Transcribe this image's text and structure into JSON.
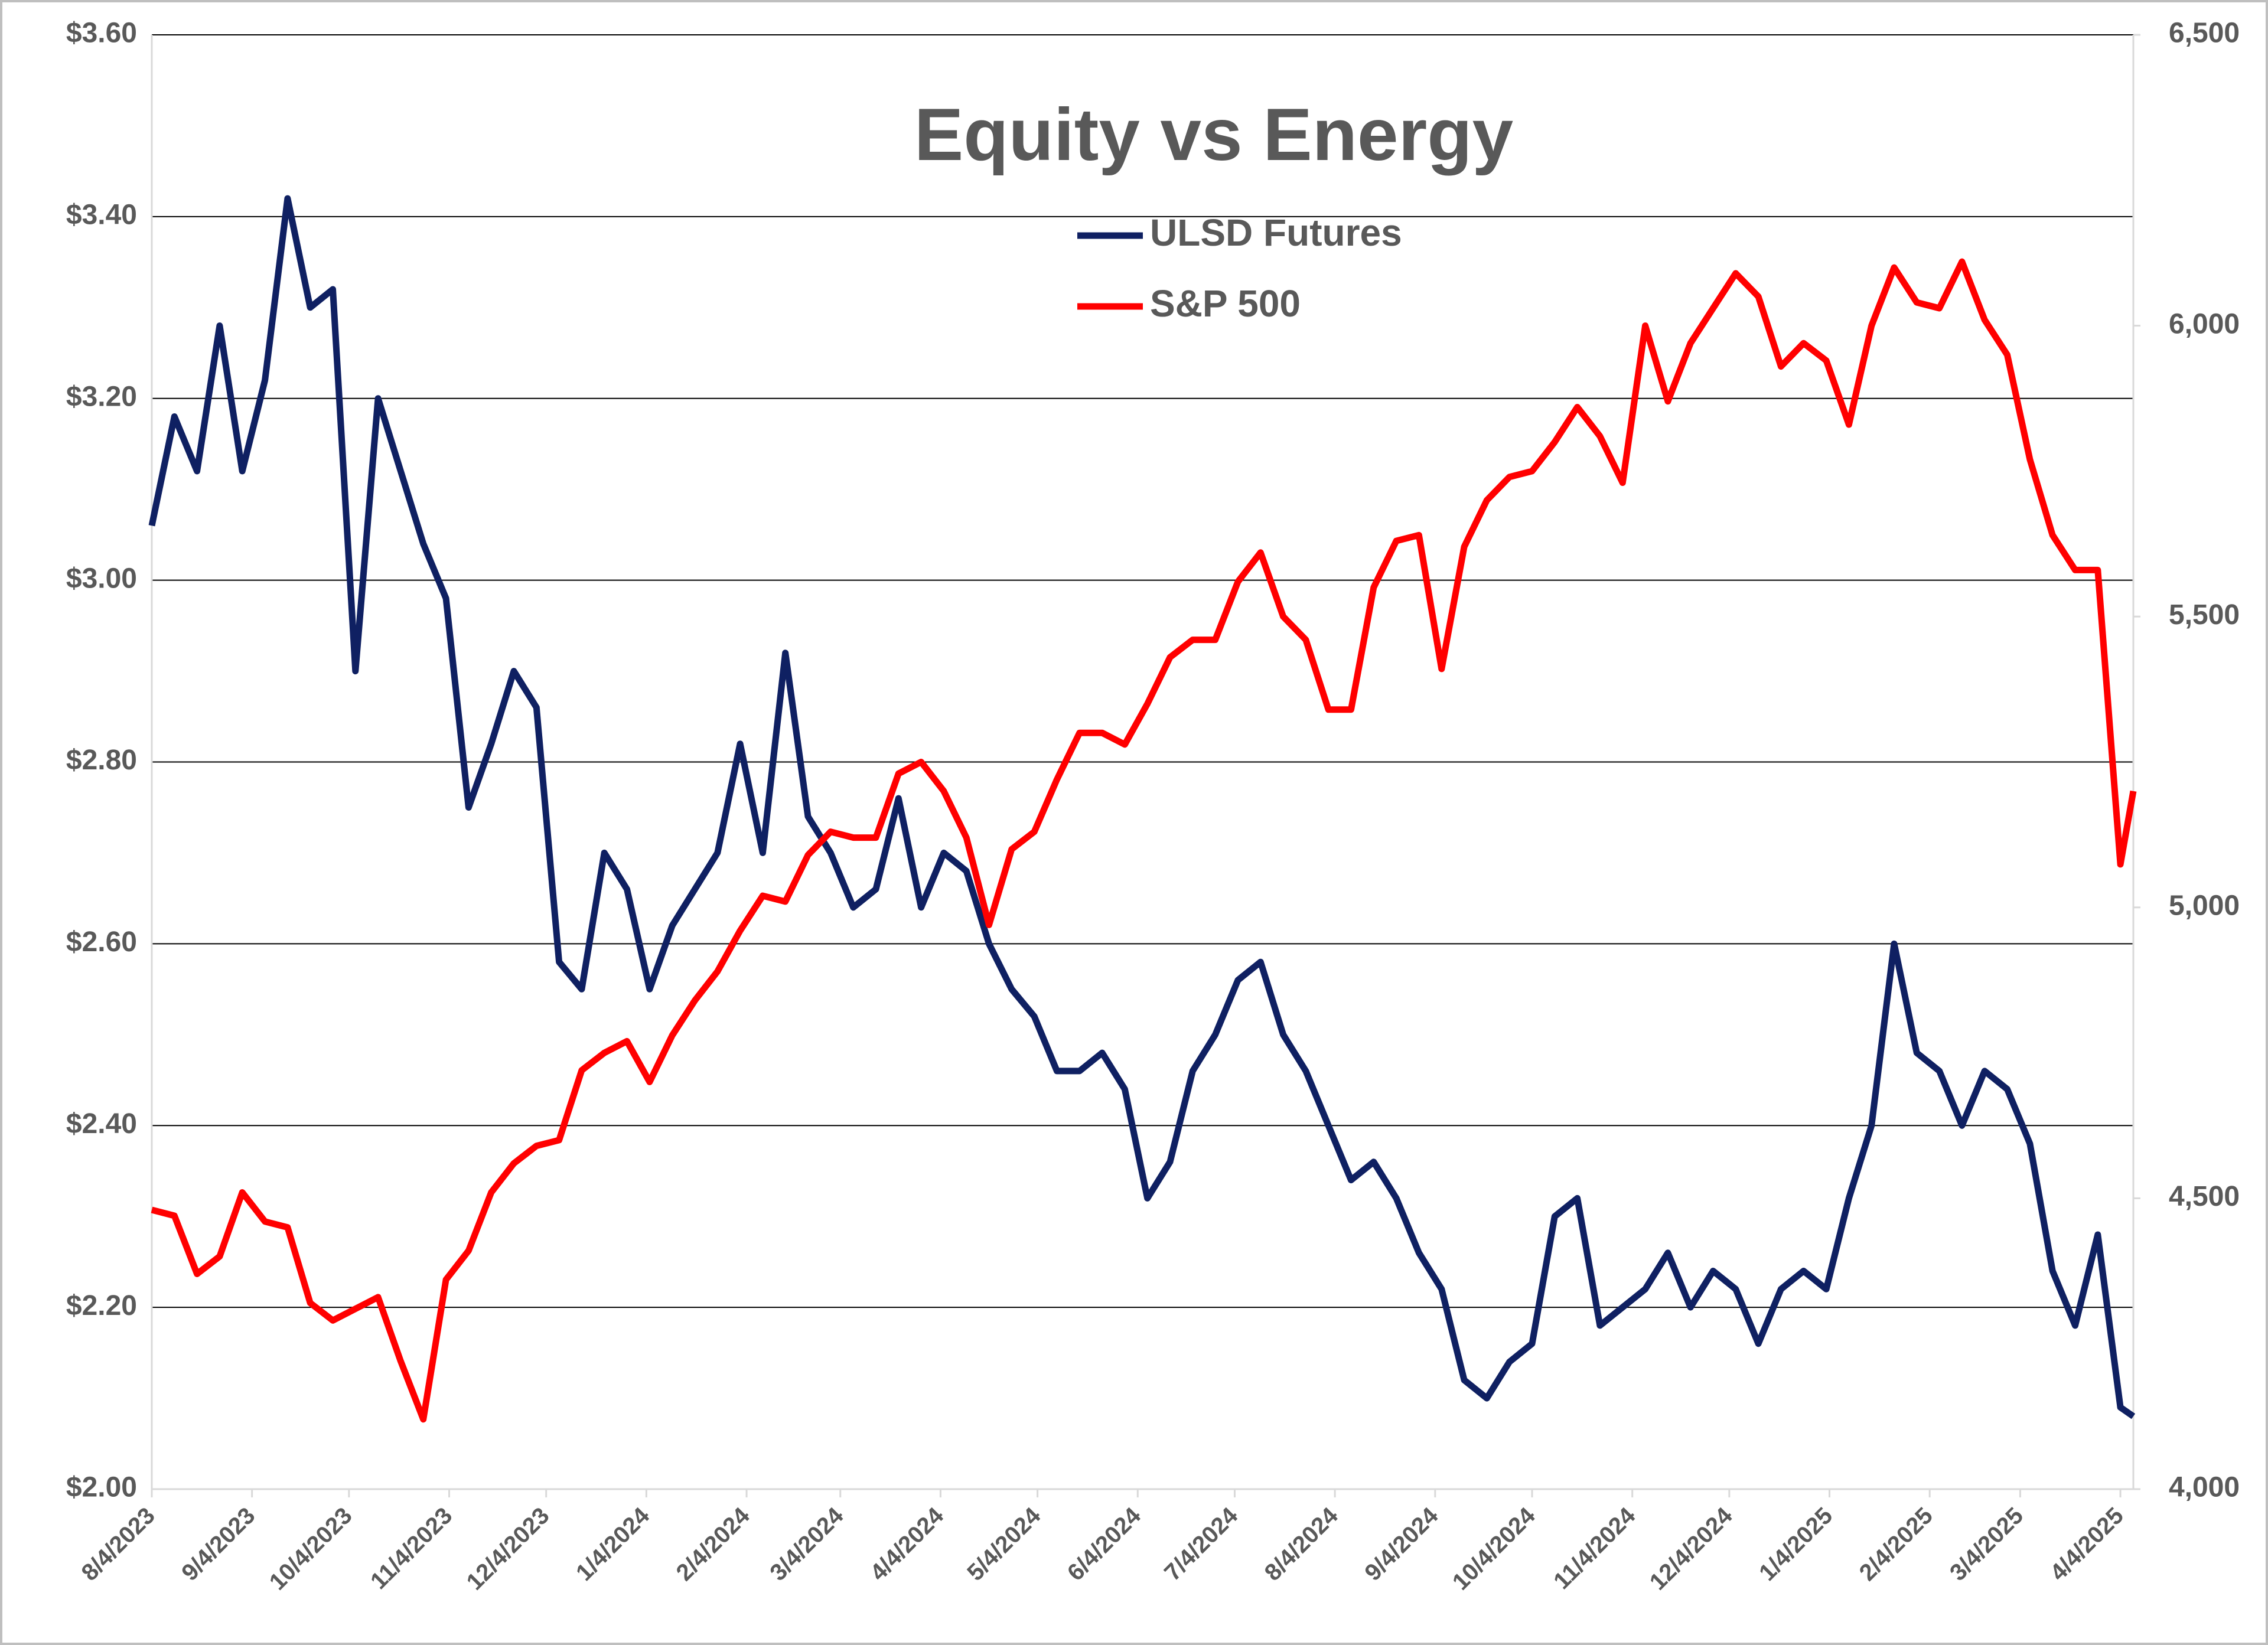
{
  "chart_data": {
    "type": "line",
    "title": "Equity vs Energy",
    "x": [
      "8/4/2023",
      "8/11/2023",
      "8/18/2023",
      "8/25/2023",
      "9/1/2023",
      "9/8/2023",
      "9/15/2023",
      "9/22/2023",
      "9/29/2023",
      "10/6/2023",
      "10/13/2023",
      "10/20/2023",
      "10/27/2023",
      "11/3/2023",
      "11/10/2023",
      "11/17/2023",
      "11/24/2023",
      "12/1/2023",
      "12/8/2023",
      "12/15/2023",
      "12/22/2023",
      "12/29/2023",
      "1/5/2024",
      "1/12/2024",
      "1/19/2024",
      "1/26/2024",
      "2/2/2024",
      "2/9/2024",
      "2/16/2024",
      "2/23/2024",
      "3/1/2024",
      "3/8/2024",
      "3/15/2024",
      "3/22/2024",
      "3/29/2024",
      "4/5/2024",
      "4/12/2024",
      "4/19/2024",
      "4/26/2024",
      "5/3/2024",
      "5/10/2024",
      "5/17/2024",
      "5/24/2024",
      "5/31/2024",
      "6/7/2024",
      "6/14/2024",
      "6/21/2024",
      "6/28/2024",
      "7/5/2024",
      "7/12/2024",
      "7/19/2024",
      "7/26/2024",
      "8/2/2024",
      "8/9/2024",
      "8/16/2024",
      "8/23/2024",
      "8/30/2024",
      "9/6/2024",
      "9/13/2024",
      "9/20/2024",
      "9/27/2024",
      "10/4/2024",
      "10/11/2024",
      "10/18/2024",
      "10/25/2024",
      "11/1/2024",
      "11/8/2024",
      "11/15/2024",
      "11/22/2024",
      "11/29/2024",
      "12/6/2024",
      "12/13/2024",
      "12/20/2024",
      "12/27/2024",
      "1/3/2025",
      "1/10/2025",
      "1/17/2025",
      "1/24/2025",
      "1/31/2025",
      "2/7/2025",
      "2/14/2025",
      "2/21/2025",
      "2/28/2025",
      "3/7/2025",
      "3/14/2025",
      "3/21/2025",
      "3/28/2025",
      "4/4/2025",
      "4/8/2025"
    ],
    "series": [
      {
        "name": "ULSD Futures",
        "color": "#0f2062",
        "axis": "y",
        "values": [
          3.06,
          3.18,
          3.12,
          3.28,
          3.12,
          3.22,
          3.42,
          3.3,
          3.32,
          2.9,
          3.2,
          3.12,
          3.04,
          2.98,
          2.75,
          2.82,
          2.9,
          2.86,
          2.58,
          2.55,
          2.7,
          2.66,
          2.55,
          2.62,
          2.66,
          2.7,
          2.82,
          2.7,
          2.92,
          2.74,
          2.7,
          2.64,
          2.66,
          2.76,
          2.64,
          2.7,
          2.68,
          2.6,
          2.55,
          2.52,
          2.46,
          2.46,
          2.48,
          2.44,
          2.32,
          2.36,
          2.46,
          2.5,
          2.56,
          2.58,
          2.5,
          2.46,
          2.4,
          2.34,
          2.36,
          2.32,
          2.26,
          2.22,
          2.12,
          2.1,
          2.14,
          2.16,
          2.3,
          2.32,
          2.18,
          2.2,
          2.22,
          2.26,
          2.2,
          2.24,
          2.22,
          2.16,
          2.22,
          2.24,
          2.22,
          2.32,
          2.4,
          2.6,
          2.48,
          2.46,
          2.4,
          2.46,
          2.44,
          2.38,
          2.24,
          2.18,
          2.28,
          2.09,
          2.08
        ]
      },
      {
        "name": "S&P 500",
        "color": "#ff0000",
        "axis": "y2",
        "values": [
          4480,
          4470,
          4370,
          4400,
          4510,
          4460,
          4450,
          4320,
          4290,
          4310,
          4330,
          4220,
          4120,
          4360,
          4410,
          4510,
          4560,
          4590,
          4600,
          4720,
          4750,
          4770,
          4700,
          4780,
          4840,
          4890,
          4960,
          5020,
          5010,
          5090,
          5130,
          5120,
          5120,
          5230,
          5250,
          5200,
          5120,
          4970,
          5100,
          5130,
          5220,
          5300,
          5300,
          5280,
          5350,
          5430,
          5460,
          5460,
          5560,
          5610,
          5500,
          5460,
          5340,
          5340,
          5550,
          5630,
          5640,
          5410,
          5620,
          5700,
          5740,
          5750,
          5800,
          5860,
          5810,
          5730,
          6000,
          5870,
          5970,
          6030,
          6090,
          6050,
          5930,
          5970,
          5940,
          5830,
          6000,
          6100,
          6040,
          6030,
          6110,
          6010,
          5950,
          5770,
          5640,
          5580,
          5580,
          5074,
          5200
        ]
      }
    ],
    "xlim": [
      "8/4/2023",
      "4/8/2025"
    ],
    "xticks": [
      "8/4/2023",
      "9/4/2023",
      "10/4/2023",
      "11/4/2023",
      "12/4/2023",
      "1/4/2024",
      "2/4/2024",
      "3/4/2024",
      "4/4/2024",
      "5/4/2024",
      "6/4/2024",
      "7/4/2024",
      "8/4/2024",
      "9/4/2024",
      "10/4/2024",
      "11/4/2024",
      "12/4/2024",
      "1/4/2025",
      "2/4/2025",
      "3/4/2025",
      "4/4/2025"
    ],
    "ylim": [
      2.0,
      3.6
    ],
    "yticks": [
      {
        "value": 2.0,
        "label": "$2.00"
      },
      {
        "value": 2.2,
        "label": "$2.20"
      },
      {
        "value": 2.4,
        "label": "$2.40"
      },
      {
        "value": 2.6,
        "label": "$2.60"
      },
      {
        "value": 2.8,
        "label": "$2.80"
      },
      {
        "value": 3.0,
        "label": "$3.00"
      },
      {
        "value": 3.2,
        "label": "$3.20"
      },
      {
        "value": 3.4,
        "label": "$3.40"
      },
      {
        "value": 3.6,
        "label": "$3.60"
      }
    ],
    "y2lim": [
      4000,
      6500
    ],
    "y2ticks": [
      {
        "value": 4000,
        "label": "4,000"
      },
      {
        "value": 4500,
        "label": "4,500"
      },
      {
        "value": 5000,
        "label": "5,000"
      },
      {
        "value": 5500,
        "label": "5,500"
      },
      {
        "value": 6000,
        "label": "6,000"
      },
      {
        "value": 6500,
        "label": "6,500"
      }
    ],
    "grid": true
  }
}
